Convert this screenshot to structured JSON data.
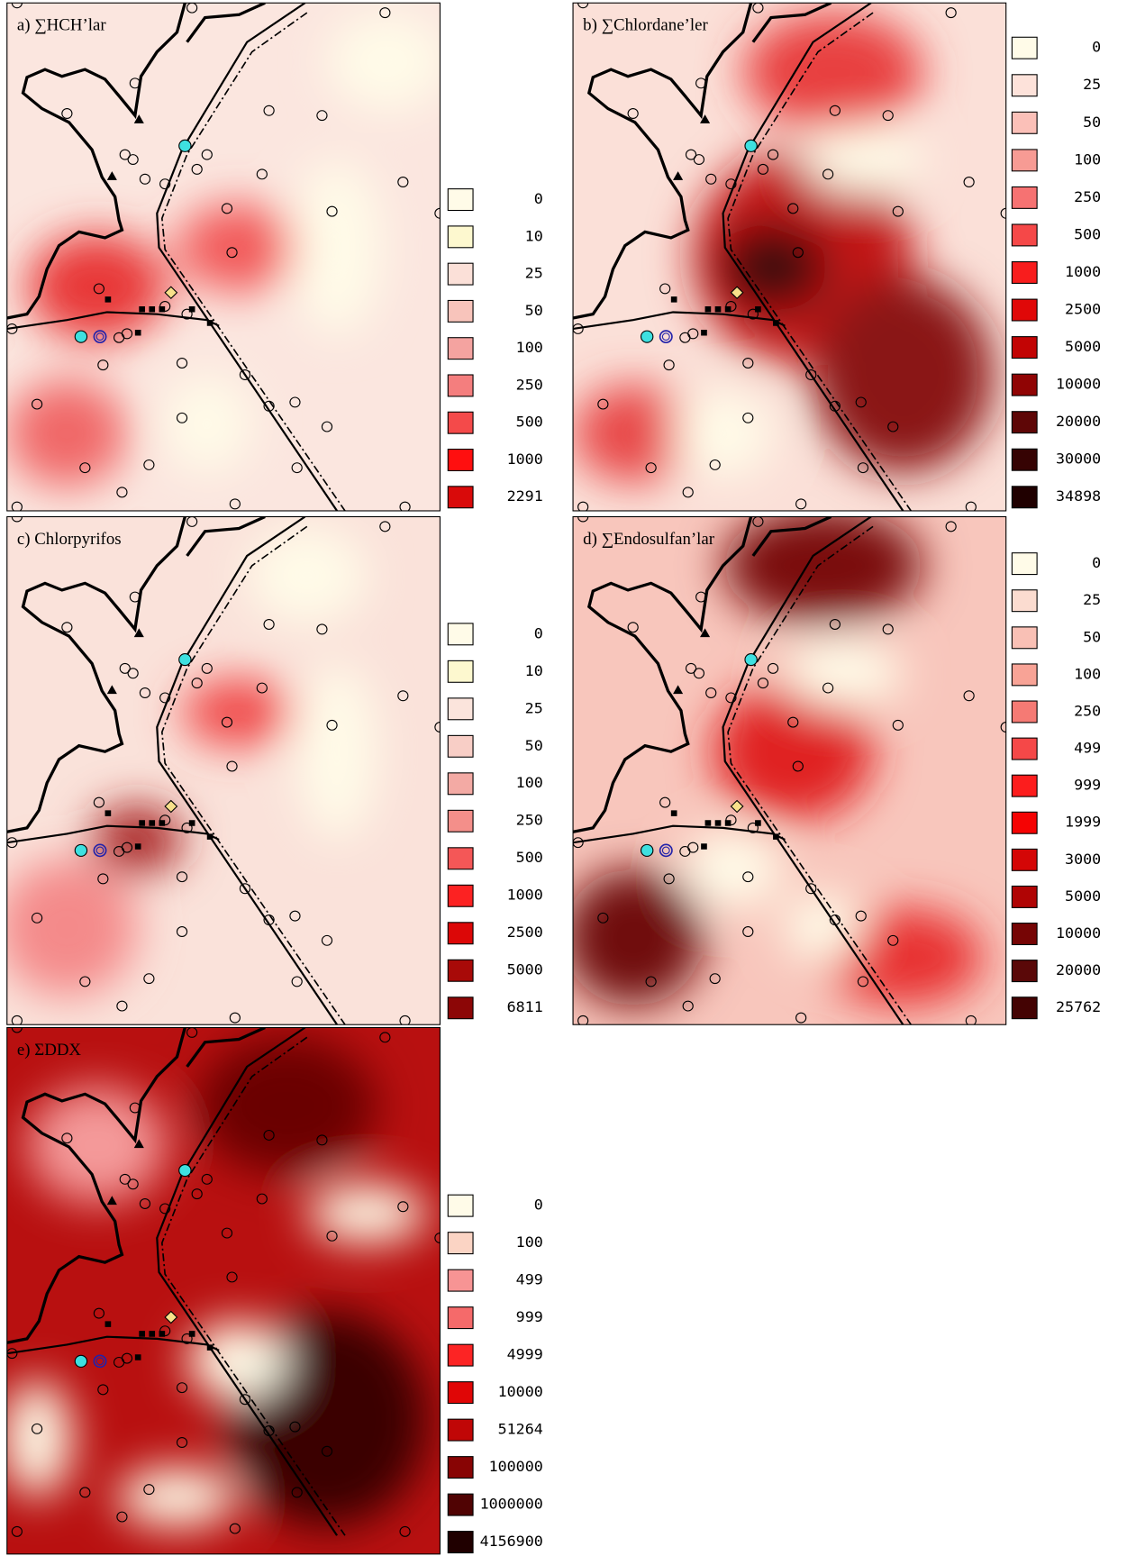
{
  "panels": [
    {
      "title": "a) ∑HCH’lar",
      "legend": [
        {
          "label": 0,
          "color": "#fffbe8"
        },
        {
          "label": 10,
          "color": "#fdf8cf"
        },
        {
          "label": 25,
          "color": "#fbe0d8"
        },
        {
          "label": 50,
          "color": "#f8c4bb"
        },
        {
          "label": 100,
          "color": "#f4a3a0"
        },
        {
          "label": 250,
          "color": "#f47e7e"
        },
        {
          "label": 500,
          "color": "#f44a4a"
        },
        {
          "label": 1000,
          "color": "#ff0f0f"
        },
        {
          "label": 2291,
          "color": "#d90a0a"
        }
      ]
    },
    {
      "title": "b) ∑Chlordane’ler",
      "legend": [
        {
          "label": 0,
          "color": "#fffbe8"
        },
        {
          "label": 25,
          "color": "#fde2da"
        },
        {
          "label": 50,
          "color": "#fbc0b8"
        },
        {
          "label": 100,
          "color": "#f79b94"
        },
        {
          "label": 250,
          "color": "#f67272"
        },
        {
          "label": 500,
          "color": "#f54848"
        },
        {
          "label": 1000,
          "color": "#f81d1d"
        },
        {
          "label": 2500,
          "color": "#e00808"
        },
        {
          "label": 5000,
          "color": "#c20404"
        },
        {
          "label": 10000,
          "color": "#900404"
        },
        {
          "label": 20000,
          "color": "#5e0606"
        },
        {
          "label": 30000,
          "color": "#360303"
        },
        {
          "label": 34898,
          "color": "#200000"
        }
      ]
    },
    {
      "title": "c) Chlorpyrifos",
      "legend": [
        {
          "label": 0,
          "color": "#fffbe8"
        },
        {
          "label": 10,
          "color": "#fdf8cf"
        },
        {
          "label": 25,
          "color": "#fbe4dc"
        },
        {
          "label": 50,
          "color": "#f8cec6"
        },
        {
          "label": 100,
          "color": "#f3aaa4"
        },
        {
          "label": 250,
          "color": "#f48f8a"
        },
        {
          "label": 500,
          "color": "#f45757"
        },
        {
          "label": 1000,
          "color": "#fc2222"
        },
        {
          "label": 2500,
          "color": "#dc0707"
        },
        {
          "label": 5000,
          "color": "#a80a08"
        },
        {
          "label": 6811,
          "color": "#8c0606"
        }
      ]
    },
    {
      "title": "d) ∑Endosulfan’lar",
      "legend": [
        {
          "label": 0,
          "color": "#fffbe8"
        },
        {
          "label": 25,
          "color": "#fbdcd0"
        },
        {
          "label": 50,
          "color": "#f9c0b5"
        },
        {
          "label": 100,
          "color": "#f8a396"
        },
        {
          "label": 250,
          "color": "#f57a74"
        },
        {
          "label": 499,
          "color": "#f54848"
        },
        {
          "label": 999,
          "color": "#fc1d1d"
        },
        {
          "label": 1999,
          "color": "#f50303"
        },
        {
          "label": 3000,
          "color": "#d40606"
        },
        {
          "label": 5000,
          "color": "#b00404"
        },
        {
          "label": 10000,
          "color": "#760505"
        },
        {
          "label": 20000,
          "color": "#5a0808"
        },
        {
          "label": 25762,
          "color": "#440303"
        }
      ]
    },
    {
      "title": "e) ΣDDX",
      "legend": [
        {
          "label": 0,
          "color": "#fffbe8"
        },
        {
          "label": 100,
          "color": "#fbd4c4"
        },
        {
          "label": 499,
          "color": "#f79494"
        },
        {
          "label": 999,
          "color": "#f56a6a"
        },
        {
          "label": 4999,
          "color": "#fc2424"
        },
        {
          "label": 10000,
          "color": "#e00606"
        },
        {
          "label": 51264,
          "color": "#c00606"
        },
        {
          "label": 100000,
          "color": "#880404"
        },
        {
          "label": 1000000,
          "color": "#500303"
        },
        {
          "label": 4156900,
          "color": "#200000"
        }
      ]
    }
  ]
}
